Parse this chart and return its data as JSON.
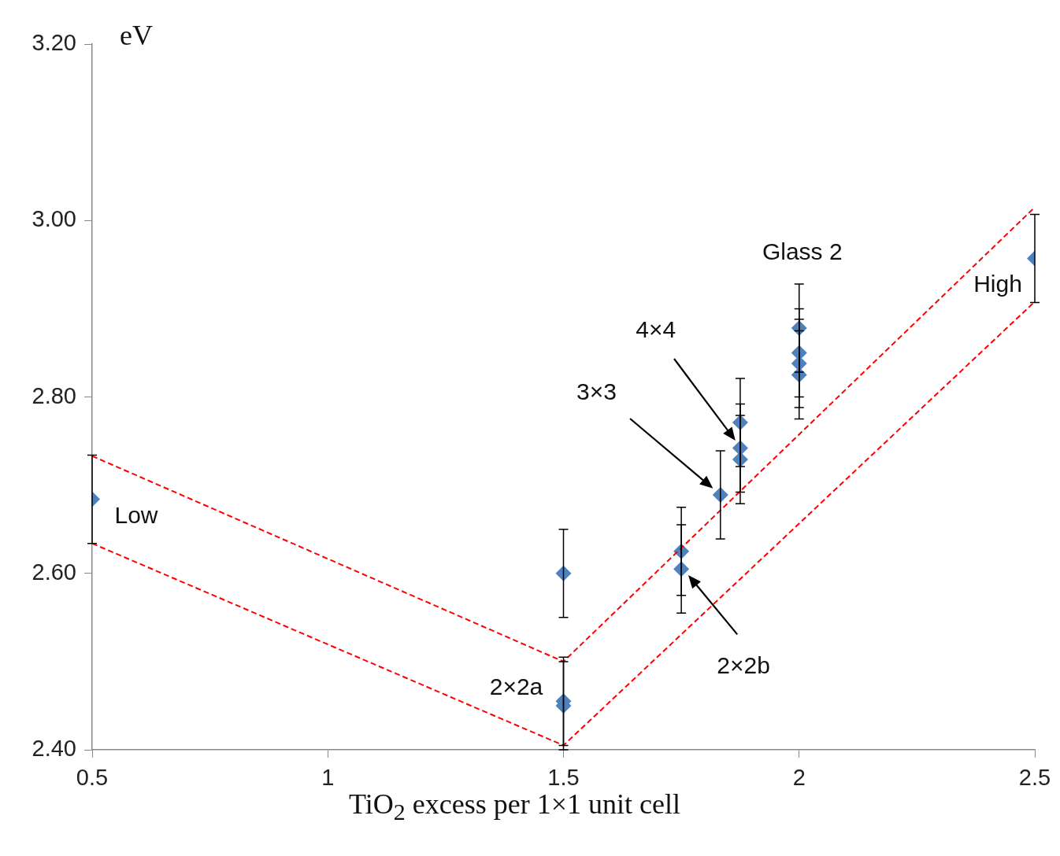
{
  "chart_data": {
    "type": "scatter",
    "xlabel": "TiO$_{2}$ excess per 1×1 unit cell",
    "ylabel": "eV",
    "xlim": [
      0.5,
      2.5
    ],
    "xticks": [
      0.5,
      1,
      1.5,
      2,
      2.5
    ],
    "ylim": [
      2.4,
      3.2
    ],
    "yticks": [
      {
        "value": 2.4,
        "label": "2.40"
      },
      {
        "value": 2.6,
        "label": "2.60"
      },
      {
        "value": 2.8,
        "label": "2.80"
      },
      {
        "value": 3.0,
        "label": "3.00"
      },
      {
        "value": 3.2,
        "label": "3.20"
      }
    ],
    "series": [
      {
        "type": "line",
        "color": "#ff0000",
        "marker": "none",
        "line_style": "dashed",
        "x": [
          0.5,
          1.5,
          2.5
        ],
        "values": [
          2.733,
          2.5,
          3.015
        ]
      },
      {
        "type": "line",
        "color": "#ff0000",
        "marker": "none",
        "line_style": "dashed",
        "x": [
          0.5,
          1.5,
          2.5
        ],
        "values": [
          2.634,
          2.405,
          2.908
        ]
      },
      {
        "type": "scatter",
        "color": "#4f81bd",
        "marker": "diamond",
        "x": [
          0.5,
          1.5,
          1.5,
          1.5,
          1.75,
          1.75,
          1.833,
          1.875,
          1.875,
          1.875,
          2,
          2,
          2,
          2,
          2.5
        ],
        "values": [
          2.684,
          2.6,
          2.455,
          2.45,
          2.625,
          2.605,
          2.689,
          2.771,
          2.742,
          2.729,
          2.878,
          2.85,
          2.838,
          2.825,
          2.957
        ],
        "errors": [
          0.05,
          0.05,
          0.05,
          0.05,
          0.05,
          0.05,
          0.05,
          0.05,
          0.05,
          0.05,
          0.05,
          0.05,
          0.05,
          0.05,
          0.05
        ]
      }
    ],
    "annotations": [
      {
        "text": "Low",
        "x": 0.5,
        "y": 2.684
      },
      {
        "text": "2×2a",
        "x": 1.5,
        "y": 2.45
      },
      "2×2b",
      "3×3",
      "4×4",
      {
        "text": "Glass 2",
        "x": 2,
        "y": 2.878
      },
      {
        "text": "High",
        "x": 2.5,
        "y": 2.957
      }
    ]
  }
}
